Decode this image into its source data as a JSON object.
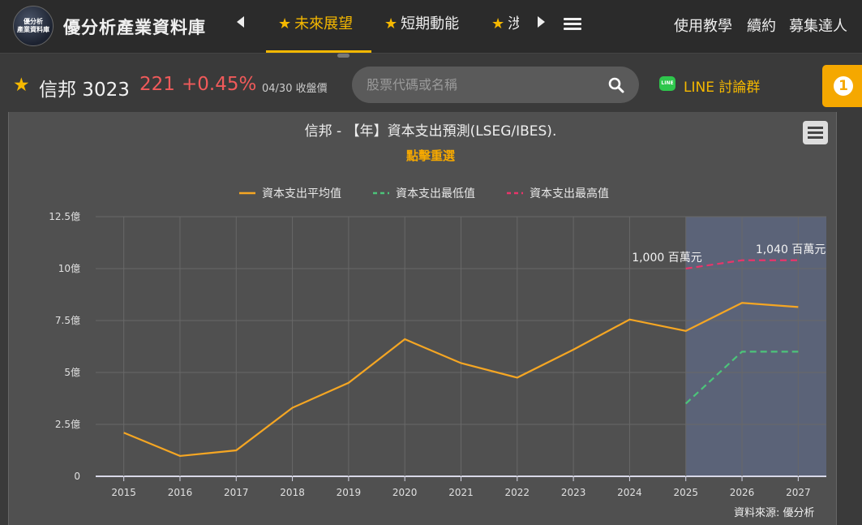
{
  "header": {
    "logo_text": "優分析 產業資料庫",
    "brand": "優分析產業資料庫",
    "tabs": [
      {
        "label": "未來展望",
        "active": true
      },
      {
        "label": "短期動能",
        "active": false
      },
      {
        "label": "涉",
        "active": false
      }
    ],
    "links": [
      "使用教學",
      "續約",
      "募集達人"
    ]
  },
  "stock": {
    "name": "信邦 3023",
    "price": "221",
    "change": "+0.45%",
    "date": "04/30 收盤價",
    "search_placeholder": "股票代碼或名稱",
    "line_label": "LINE 討論群",
    "notification_count": "1"
  },
  "chart_data": {
    "type": "line",
    "title": "信邦 - 【年】資本支出預測(LSEG/IBES).",
    "subtitle": "點擊重選",
    "x": [
      "2015",
      "2016",
      "2017",
      "2018",
      "2019",
      "2020",
      "2021",
      "2022",
      "2023",
      "2024",
      "2025",
      "2026",
      "2027"
    ],
    "y_ticks": [
      "0",
      "2.5億",
      "5億",
      "7.5億",
      "10億",
      "12.5億"
    ],
    "ylim": [
      0,
      1250
    ],
    "y_unit": "百萬元",
    "forecast_start": "2025",
    "series": [
      {
        "name": "資本支出平均值",
        "color": "#f5a623",
        "dash": false,
        "values": [
          210,
          98,
          125,
          330,
          450,
          660,
          545,
          475,
          610,
          755,
          700,
          835,
          815
        ]
      },
      {
        "name": "資本支出最低值",
        "color": "#4cc47a",
        "dash": true,
        "values": [
          null,
          null,
          null,
          null,
          null,
          null,
          null,
          null,
          null,
          null,
          350,
          600,
          600
        ]
      },
      {
        "name": "資本支出最高值",
        "color": "#e8356a",
        "dash": true,
        "values": [
          null,
          null,
          null,
          null,
          null,
          null,
          null,
          null,
          null,
          null,
          1000,
          1040,
          1040
        ]
      }
    ],
    "annotations": [
      {
        "x": "2025",
        "label": "1,000 百萬元"
      },
      {
        "x": "2027",
        "label": "1,040 百萬元"
      }
    ],
    "grid": true,
    "legend_position": "top-center"
  },
  "source": "資料來源: 優分析"
}
